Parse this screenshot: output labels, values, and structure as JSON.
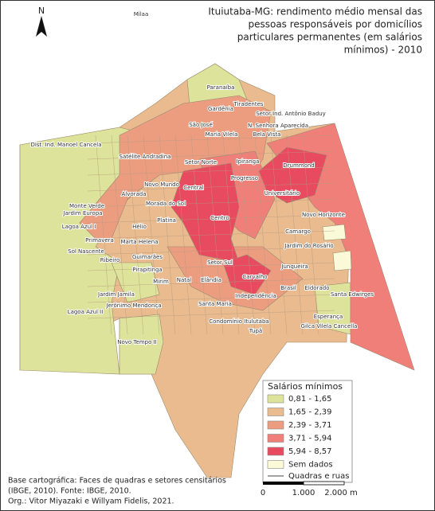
{
  "title_lines": [
    "Ituiutaba-MG: rendimento médio mensal das",
    "pessoas responsáveis por domicílios",
    "particulares permanentes (em salários",
    "mínimos) - 2010"
  ],
  "north": "N",
  "legend": {
    "title": "Salários mínimos",
    "items": [
      {
        "label": "0,81 - 1,65",
        "color": "#dde39a"
      },
      {
        "label": "1,65 - 2,39",
        "color": "#e9bb8e"
      },
      {
        "label": "2,39 - 3,71",
        "color": "#ec9d80"
      },
      {
        "label": "3,71 - 5,94",
        "color": "#f07f7a"
      },
      {
        "label": "5,94 - 8,57",
        "color": "#e84a60"
      },
      {
        "label": "Sem dados",
        "color": "#fafad8"
      }
    ],
    "line_label": "Quadras e ruas"
  },
  "scale": {
    "labels": [
      "0",
      "1.000",
      "2.000 m"
    ]
  },
  "credits": [
    "Base cartográfica: Faces de quadras e setores censitários",
    "(IBGE, 2010). Fonte: IBGE, 2010.",
    "Org.: Vitor Miyazaki e Willyam Fidelis, 2021."
  ],
  "neighborhoods": [
    "Milaa",
    "Paranaíba",
    "Tiradentes",
    "Gardênia",
    "Setor Ind. Antônio Baduy",
    "São José",
    "N. Senhora Aparecida",
    "Maria Vilela",
    "Bela Vista",
    "Dist. Ind. Manoel Cancela",
    "Satélite Andradina",
    "Setor Norte",
    "Ipiranga",
    "Drummond",
    "Progresso",
    "Novo Mundo",
    "Central",
    "Universitário",
    "Alvorada",
    "Monte Verde",
    "Morada do Sol",
    "Jardim Europa",
    "Novo Horizonte",
    "Centro",
    "Platina",
    "Lagoa Azul I",
    "Hélio",
    "Camargo",
    "Primavera",
    "Marta Helena",
    "Jardim do Rosário",
    "Sol Nascente",
    "Guimarães",
    "Ribeiro",
    "Setor Sul",
    "Junqueira",
    "Pirapitinga",
    "Natal",
    "Mirim",
    "Elândia",
    "Carvalho",
    "Brasil",
    "Eldorado",
    "Santa Edwirges",
    "Jardim Jamila",
    "Independência",
    "Jerônimo Mendonça",
    "Santa Maria",
    "Lagoa Azul II",
    "Esperança",
    "Condomínio Itulutaba",
    "Gilca Vilela Cancella",
    "Tupã",
    "Novo Tempo II"
  ]
}
